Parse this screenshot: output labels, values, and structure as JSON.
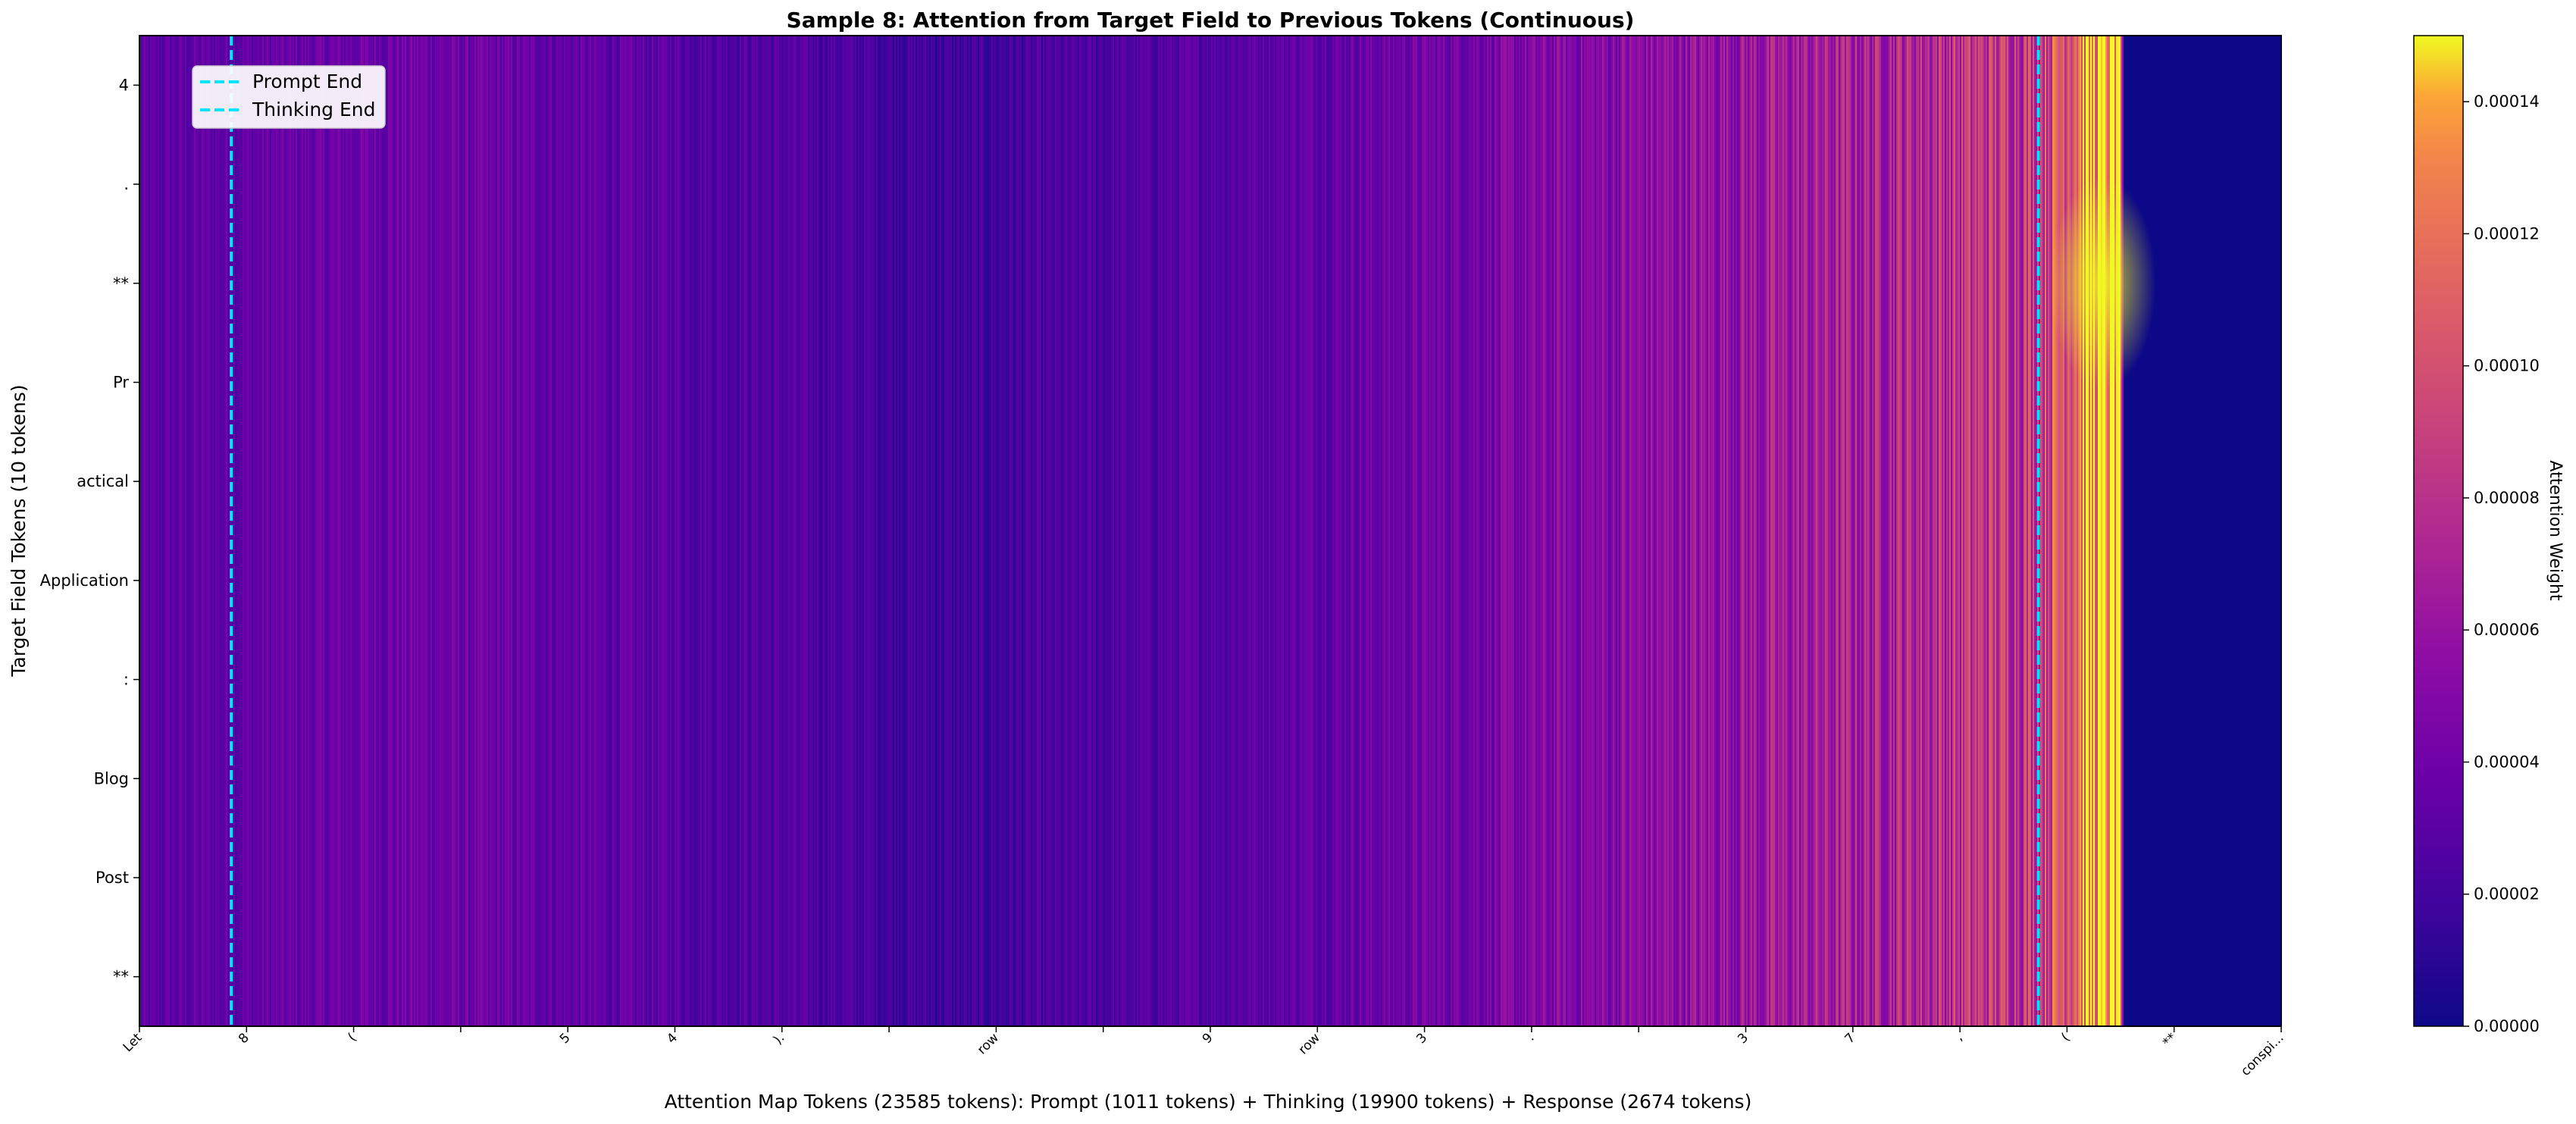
{
  "chart_data": {
    "type": "heatmap",
    "title": "Sample 8: Attention from Target Field to Previous Tokens (Continuous)",
    "xlabel": "Attention Map Tokens (23585 tokens): Prompt (1011 tokens) + Thinking (19900 tokens) + Response (2674 tokens)",
    "ylabel": "Target Field Tokens (10 tokens)",
    "total_tokens": 23585,
    "segments": {
      "prompt_tokens": 1011,
      "thinking_tokens": 19900,
      "response_tokens": 2674
    },
    "y_tick_labels": [
      "4",
      ".",
      "**",
      "Pr",
      "actical",
      "Application",
      ":",
      "Blog",
      "Post",
      "**"
    ],
    "x_tick_labels": [
      "Let",
      "8",
      "(",
      "",
      "5",
      "4",
      ").",
      "",
      "row",
      "",
      "9",
      "row",
      "3",
      ".",
      "",
      "3",
      "7",
      ",",
      "(",
      "**",
      "conspi..."
    ],
    "colorbar": {
      "label": "Attention Weight",
      "colormap": "plasma",
      "vmin": 0.0,
      "vmax": 0.00015,
      "ticks": [
        0.0,
        2e-05,
        4e-05,
        6e-05,
        8e-05,
        0.0001,
        0.00012,
        0.00014
      ],
      "tick_labels": [
        "0.00000",
        "0.00002",
        "0.00004",
        "0.00006",
        "0.00008",
        "0.00010",
        "0.00012",
        "0.00014"
      ]
    },
    "markers": [
      {
        "name": "Prompt End",
        "token_index": 1011,
        "color": "#00e5ff",
        "style": "dashed"
      },
      {
        "name": "Thinking End",
        "token_index": 20911,
        "color": "#00e5ff",
        "style": "dashed"
      }
    ],
    "legend": {
      "placement": "upper-left",
      "entries": [
        "Prompt End",
        "Thinking End"
      ]
    },
    "value_profile": {
      "description": "columns vary by token; attention rises gradually toward the end of thinking and is highest just after Thinking End, zero for trailing padded region",
      "anchors": [
        {
          "token_index": 0,
          "weight": 3e-05
        },
        {
          "token_index": 3000,
          "weight": 4e-05
        },
        {
          "token_index": 7500,
          "weight": 2.5e-05
        },
        {
          "token_index": 9000,
          "weight": 1.8e-05
        },
        {
          "token_index": 12000,
          "weight": 3e-05
        },
        {
          "token_index": 16000,
          "weight": 5e-05
        },
        {
          "token_index": 19000,
          "weight": 7e-05
        },
        {
          "token_index": 20900,
          "weight": 9e-05
        },
        {
          "token_index": 21400,
          "weight": 0.00013
        },
        {
          "token_index": 21800,
          "weight": 0.00015
        },
        {
          "token_index": 21850,
          "weight": 0.0
        },
        {
          "token_index": 23585,
          "weight": 0.0
        }
      ]
    }
  }
}
